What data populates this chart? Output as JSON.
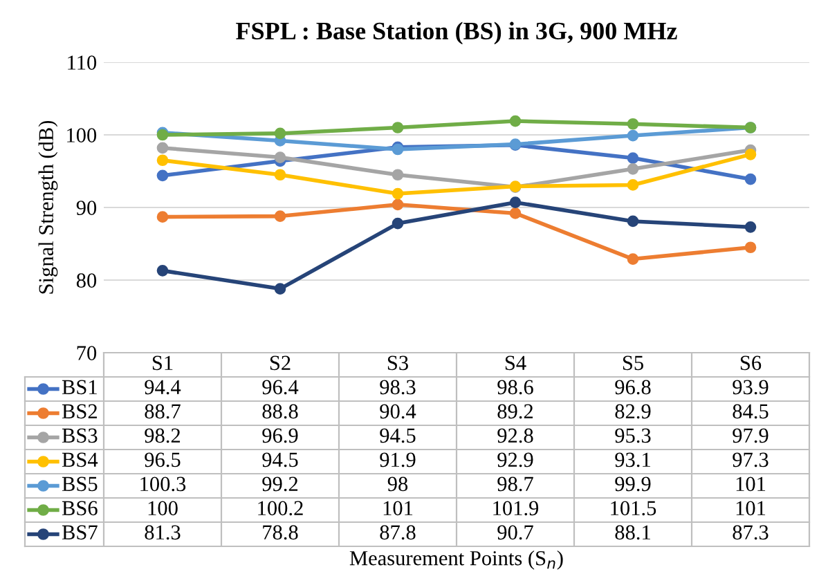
{
  "chart_data": {
    "type": "line",
    "title": "FSPL : Base Station (BS) in 3G, 900 MHz",
    "annotations": [
      "Measurement Points (S$_{n}$)"
    ],
    "ylabel": "Signal Strength (dB)",
    "categories": [
      "S1",
      "S2",
      "S3",
      "S4",
      "S5",
      "S6"
    ],
    "series": [
      {
        "name": "BS1",
        "color": "#4472c4",
        "values": [
          94.4,
          96.4,
          98.3,
          98.6,
          96.8,
          93.9
        ]
      },
      {
        "name": "BS2",
        "color": "#ed7d31",
        "values": [
          88.7,
          88.8,
          90.4,
          89.2,
          82.9,
          84.5
        ]
      },
      {
        "name": "BS3",
        "color": "#a5a5a5",
        "values": [
          98.2,
          96.9,
          94.5,
          92.8,
          95.3,
          97.9
        ]
      },
      {
        "name": "BS4",
        "color": "#ffc000",
        "values": [
          96.5,
          94.5,
          91.9,
          92.9,
          93.1,
          97.3
        ]
      },
      {
        "name": "BS5",
        "color": "#5b9bd5",
        "values": [
          100.3,
          99.2,
          98,
          98.7,
          99.9,
          101
        ]
      },
      {
        "name": "BS6",
        "color": "#70ad47",
        "values": [
          100,
          100.2,
          101,
          101.9,
          101.5,
          101
        ]
      },
      {
        "name": "BS7",
        "color": "#264478",
        "values": [
          81.3,
          78.8,
          87.8,
          90.7,
          88.1,
          87.3
        ]
      }
    ],
    "ylim": [
      70,
      110
    ],
    "yticks": [
      70,
      80,
      90,
      100,
      110
    ],
    "grid": "y",
    "marker": "circle",
    "line_style": "solid",
    "tick_labels": "y",
    "data_labels": true,
    "legend": "bottom left"
  }
}
